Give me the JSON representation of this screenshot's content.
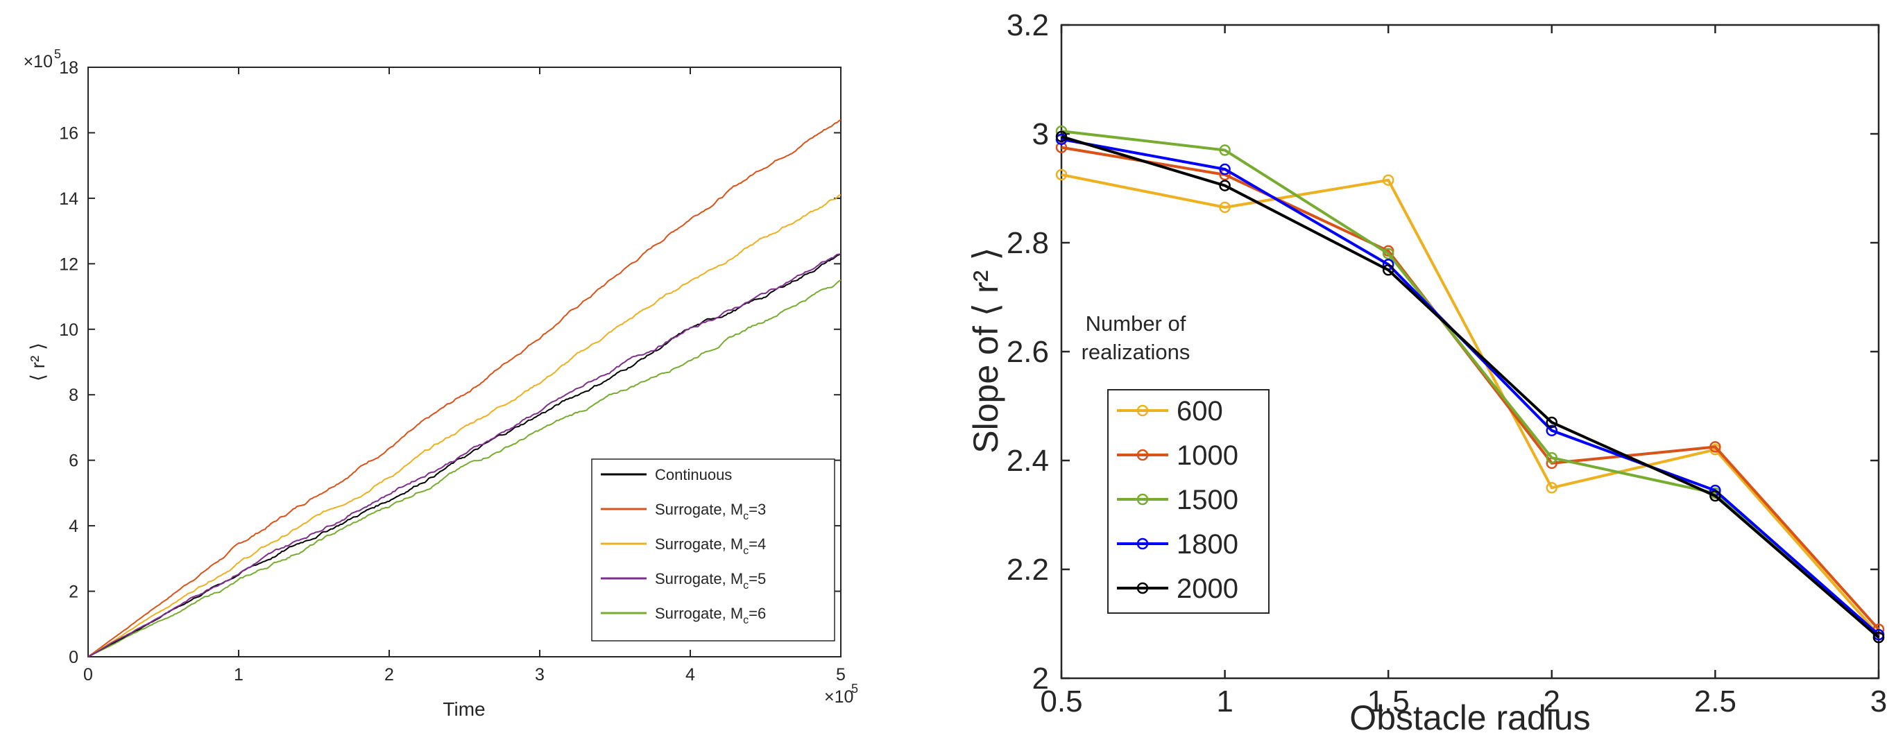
{
  "chart_data": [
    {
      "type": "line",
      "title": "",
      "xlabel": "Time",
      "ylabel": "⟨ r² ⟩",
      "x_exponent_label": "×10",
      "x_exponent": "5",
      "y_exponent_label": "×10",
      "y_exponent": "5",
      "xlim": [
        0,
        5
      ],
      "ylim": [
        0,
        18
      ],
      "xticks": [
        0,
        1,
        2,
        3,
        4,
        5
      ],
      "yticks": [
        0,
        2,
        4,
        6,
        8,
        10,
        12,
        14,
        16,
        18
      ],
      "legend_position": "bottom-right",
      "series": [
        {
          "name": "Continuous",
          "legend_label": "Continuous",
          "sub": "",
          "after": "",
          "color": "#000000",
          "x": [
            0,
            1,
            2,
            2.5,
            3,
            3.5,
            4,
            4.5,
            5
          ],
          "y": [
            0,
            2.55,
            4.8,
            6.1,
            7.4,
            8.6,
            10.0,
            11.0,
            12.3
          ]
        },
        {
          "name": "Surrogate, Mc=3",
          "legend_label": "Surrogate, M",
          "sub": "c",
          "after": "=3",
          "color": "#d95319",
          "x": [
            0,
            1,
            2,
            2.5,
            3,
            3.5,
            4,
            4.5,
            5
          ],
          "y": [
            0,
            3.4,
            6.4,
            8.0,
            9.8,
            11.6,
            13.4,
            15.0,
            16.4
          ]
        },
        {
          "name": "Surrogate, Mc=4",
          "legend_label": "Surrogate, M",
          "sub": "c",
          "after": "=4",
          "color": "#edb120",
          "x": [
            0,
            1,
            2,
            2.5,
            3,
            3.5,
            4,
            4.5,
            5
          ],
          "y": [
            0,
            2.9,
            5.5,
            7.0,
            8.4,
            10.0,
            11.5,
            12.8,
            14.1
          ]
        },
        {
          "name": "Surrogate, Mc=5",
          "legend_label": "Surrogate, M",
          "sub": "c",
          "after": "=5",
          "color": "#7e2f8e",
          "x": [
            0,
            1,
            2,
            2.5,
            3,
            3.5,
            4,
            4.5,
            5
          ],
          "y": [
            0,
            2.6,
            5.0,
            6.2,
            7.5,
            8.8,
            10.0,
            11.1,
            12.3
          ]
        },
        {
          "name": "Surrogate, Mc=6",
          "legend_label": "Surrogate, M",
          "sub": "c",
          "after": "=6",
          "color": "#77ac30",
          "x": [
            0,
            1,
            2,
            2.5,
            3,
            3.5,
            4,
            4.5,
            5
          ],
          "y": [
            0,
            2.3,
            4.6,
            5.8,
            6.9,
            8.0,
            9.1,
            10.3,
            11.5
          ]
        }
      ]
    },
    {
      "type": "line",
      "title": "",
      "xlabel": "Obstacle radius",
      "ylabel": "Slope of ⟨ r² ⟩",
      "xlim": [
        0.5,
        3
      ],
      "ylim": [
        2,
        3.2
      ],
      "xticks": [
        0.5,
        1,
        1.5,
        2,
        2.5,
        3
      ],
      "yticks": [
        2,
        2.2,
        2.4,
        2.6,
        2.8,
        3,
        3.2
      ],
      "x": [
        0.5,
        1,
        1.5,
        2,
        2.5,
        3
      ],
      "legend_title": [
        "Number of",
        "realizations"
      ],
      "legend_position": "left-middle",
      "series": [
        {
          "name": "600",
          "color": "#edb120",
          "values": [
            2.925,
            2.865,
            2.915,
            2.35,
            2.42,
            2.08
          ]
        },
        {
          "name": "1000",
          "color": "#d95319",
          "values": [
            2.975,
            2.925,
            2.785,
            2.395,
            2.425,
            2.09
          ]
        },
        {
          "name": "1500",
          "color": "#77ac30",
          "values": [
            3.005,
            2.97,
            2.78,
            2.405,
            2.34,
            2.075
          ]
        },
        {
          "name": "1800",
          "color": "#0000ff",
          "values": [
            2.99,
            2.935,
            2.76,
            2.455,
            2.345,
            2.08
          ]
        },
        {
          "name": "2000",
          "color": "#000000",
          "values": [
            2.995,
            2.905,
            2.75,
            2.47,
            2.335,
            2.075
          ]
        }
      ]
    }
  ]
}
